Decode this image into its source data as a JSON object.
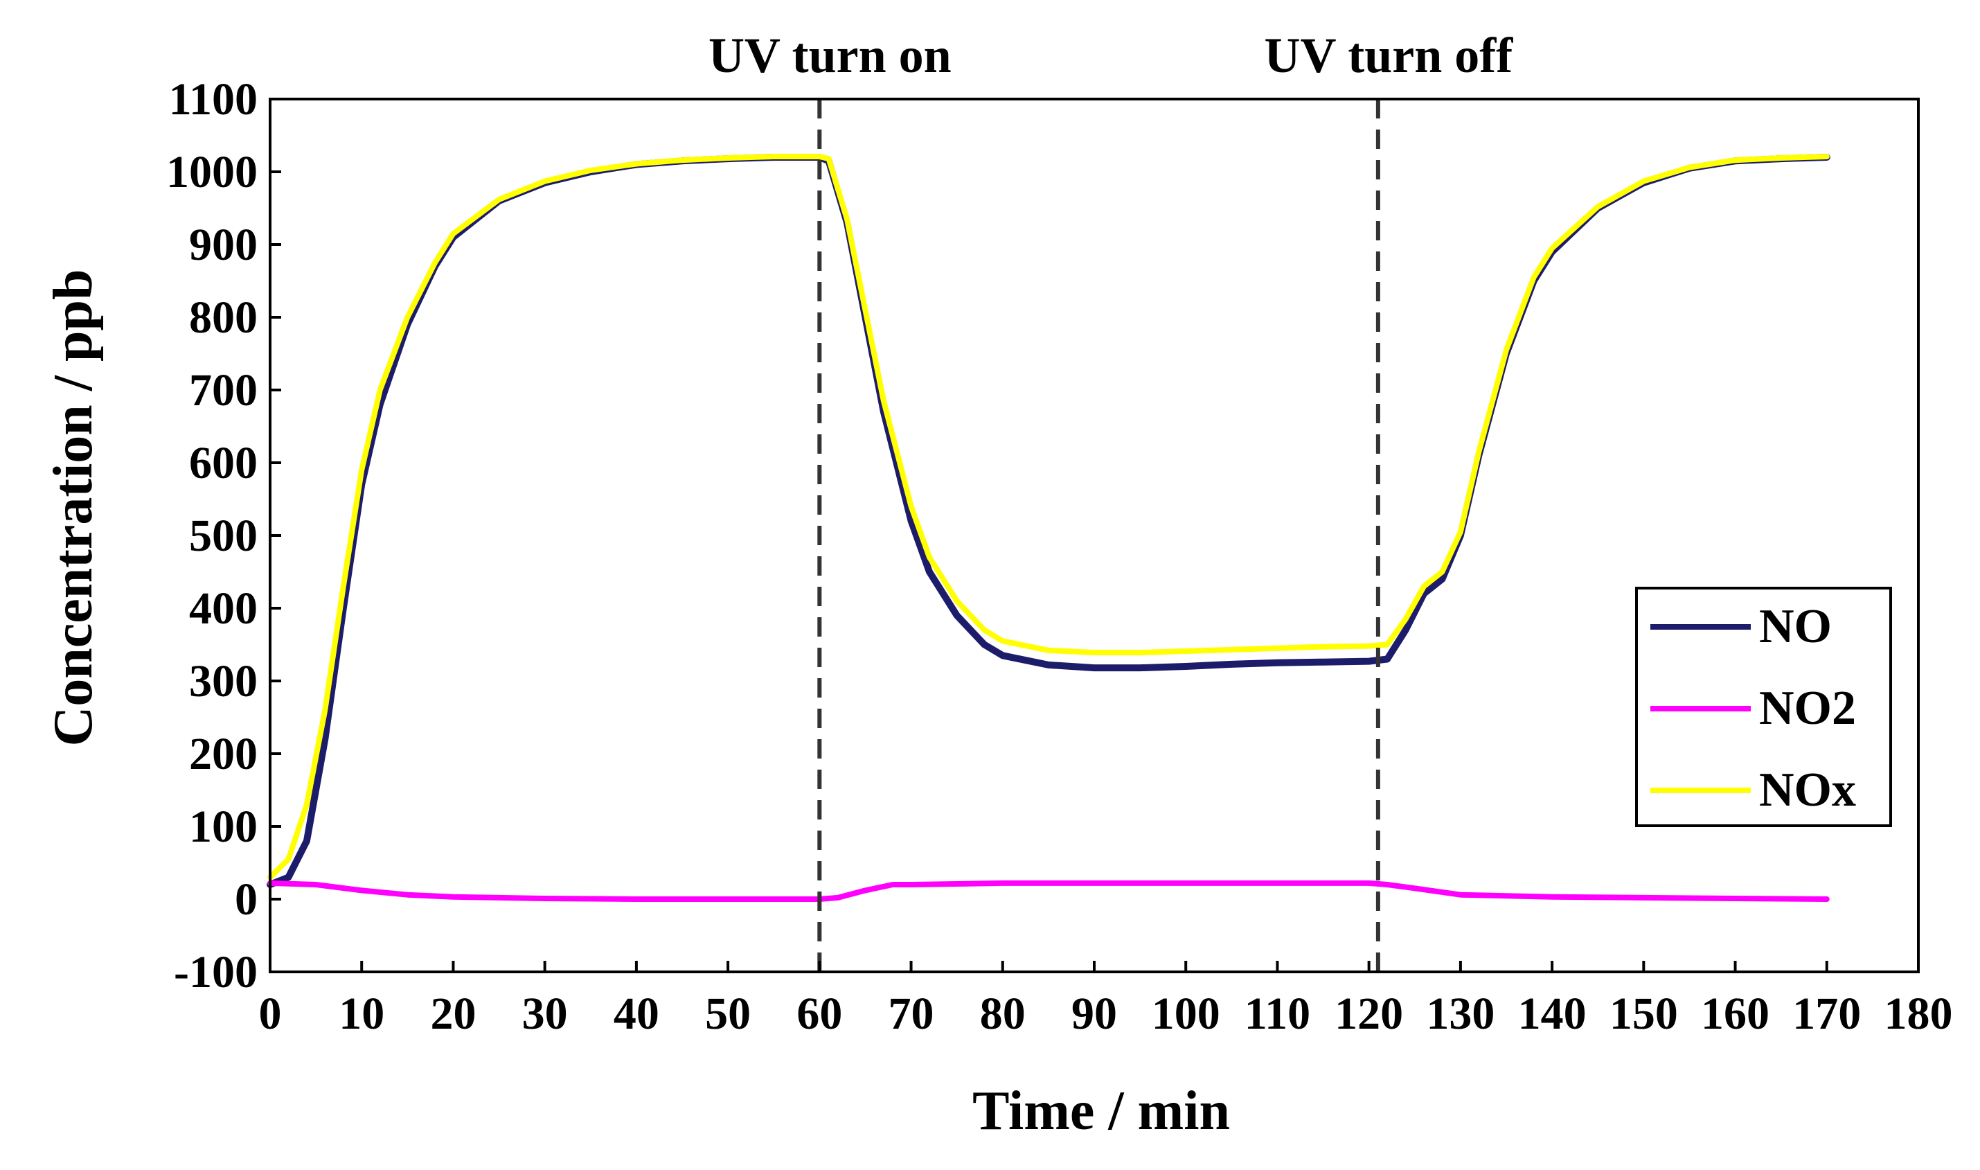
{
  "chart_data": {
    "type": "line",
    "title": "",
    "xlabel": "Time / min",
    "ylabel": "Concentration / ppb",
    "xlim": [
      0,
      180
    ],
    "ylim": [
      -100,
      1100
    ],
    "x_ticks": [
      0,
      10,
      20,
      30,
      40,
      50,
      60,
      70,
      80,
      90,
      100,
      110,
      120,
      130,
      140,
      150,
      160,
      170,
      180
    ],
    "y_ticks": [
      -100,
      0,
      100,
      200,
      300,
      400,
      500,
      600,
      700,
      800,
      900,
      1000,
      1100
    ],
    "x_tick_labels": [
      "0",
      "10",
      "20",
      "30",
      "40",
      "50",
      "60",
      "70",
      "80",
      "90",
      "100",
      "110",
      "120",
      "130",
      "140",
      "150",
      "160",
      "170",
      "180"
    ],
    "y_tick_labels": [
      "-100",
      "0",
      "100",
      "200",
      "300",
      "400",
      "500",
      "600",
      "700",
      "800",
      "900",
      "1000",
      "1100"
    ],
    "grid": false,
    "legend_position": "right",
    "annotations": [
      {
        "label": "UV turn on",
        "x": 60
      },
      {
        "label": "UV turn off",
        "x": 121
      }
    ],
    "series": [
      {
        "name": "NO",
        "color": "#1c1c6b",
        "x": [
          0,
          2,
          4,
          6,
          8,
          10,
          12,
          15,
          18,
          20,
          25,
          30,
          35,
          40,
          45,
          50,
          55,
          60,
          61,
          63,
          65,
          67,
          70,
          72,
          75,
          78,
          80,
          85,
          90,
          95,
          100,
          105,
          110,
          115,
          120,
          122,
          124,
          126,
          128,
          130,
          132,
          135,
          138,
          140,
          145,
          150,
          155,
          160,
          165,
          170
        ],
        "y": [
          20,
          30,
          80,
          220,
          400,
          570,
          680,
          790,
          870,
          910,
          960,
          985,
          1000,
          1010,
          1015,
          1018,
          1020,
          1020,
          1015,
          930,
          800,
          670,
          520,
          450,
          390,
          350,
          335,
          322,
          318,
          318,
          320,
          323,
          325,
          326,
          327,
          330,
          370,
          420,
          440,
          500,
          610,
          750,
          850,
          890,
          950,
          985,
          1005,
          1015,
          1018,
          1020
        ]
      },
      {
        "name": "NO2",
        "color": "#ff00ff",
        "x": [
          0,
          5,
          10,
          15,
          20,
          30,
          40,
          50,
          60,
          62,
          65,
          68,
          70,
          80,
          90,
          100,
          110,
          120,
          122,
          125,
          130,
          140,
          150,
          160,
          170
        ],
        "y": [
          22,
          20,
          12,
          6,
          3,
          1,
          0,
          0,
          0,
          2,
          12,
          20,
          20,
          22,
          22,
          22,
          22,
          22,
          20,
          15,
          6,
          3,
          2,
          1,
          0
        ]
      },
      {
        "name": "NOx",
        "color": "#ffff00",
        "x": [
          0,
          2,
          4,
          6,
          8,
          10,
          12,
          15,
          18,
          20,
          25,
          30,
          35,
          40,
          45,
          50,
          55,
          60,
          61,
          63,
          65,
          67,
          70,
          72,
          75,
          78,
          80,
          85,
          90,
          95,
          100,
          105,
          110,
          115,
          120,
          122,
          124,
          126,
          128,
          130,
          132,
          135,
          138,
          140,
          145,
          150,
          155,
          160,
          165,
          170
        ],
        "y": [
          30,
          55,
          130,
          260,
          430,
          590,
          700,
          800,
          875,
          915,
          962,
          987,
          1002,
          1011,
          1016,
          1019,
          1021,
          1021,
          1018,
          935,
          810,
          685,
          540,
          470,
          410,
          370,
          355,
          342,
          339,
          339,
          341,
          343,
          345,
          347,
          348,
          350,
          385,
          430,
          450,
          505,
          615,
          755,
          855,
          895,
          952,
          987,
          1006,
          1016,
          1019,
          1021
        ]
      }
    ]
  }
}
